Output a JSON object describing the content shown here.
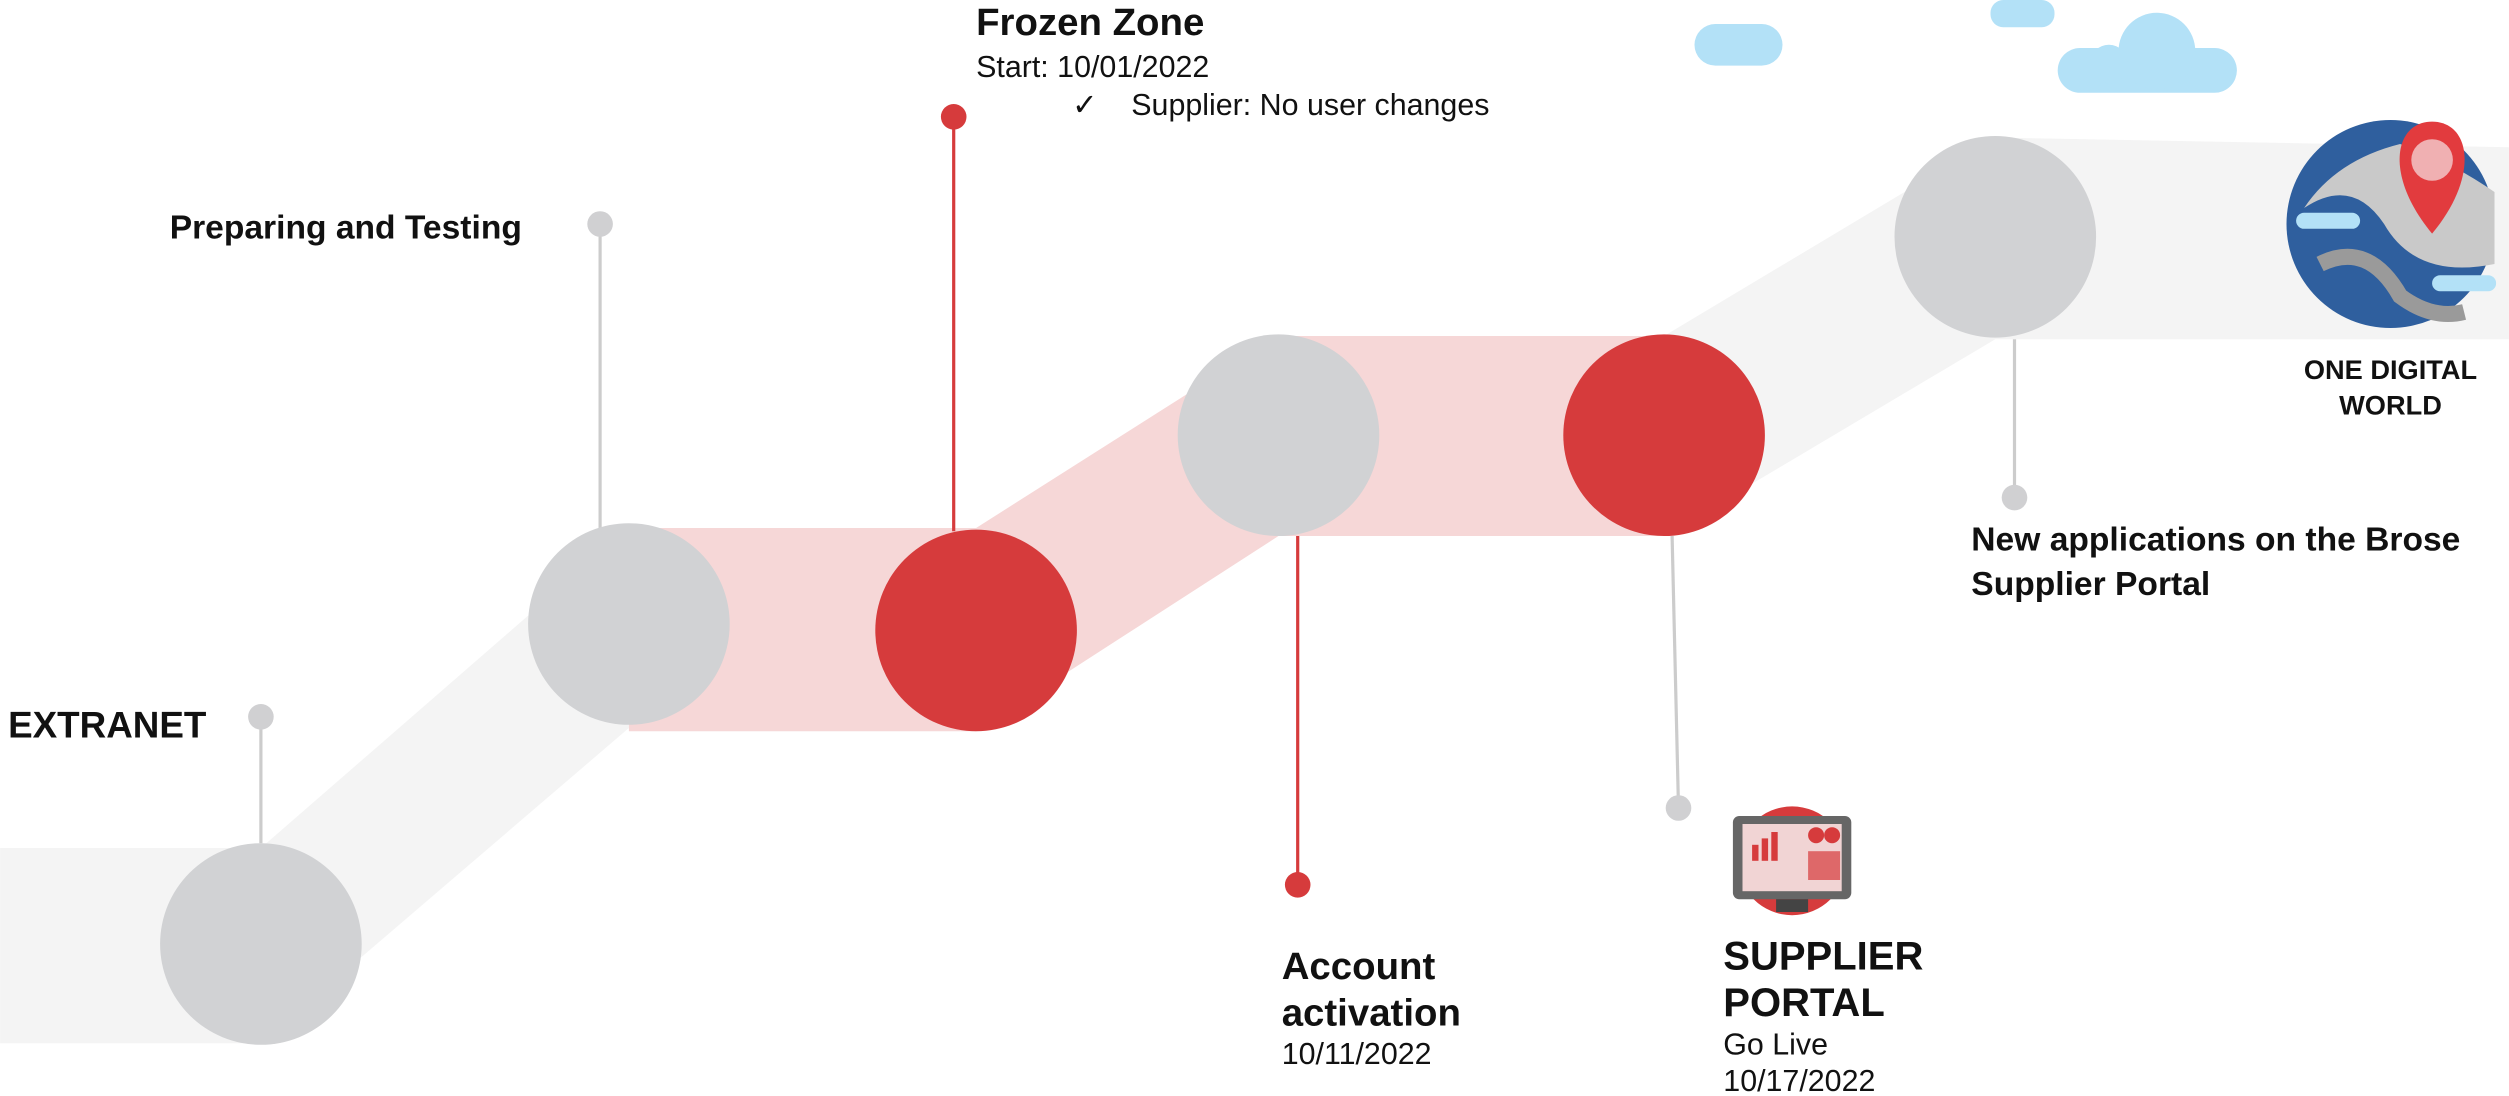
{
  "milestones": [
    {
      "title": "EXTRANET"
    },
    {
      "title": "Preparing and Testing"
    },
    {
      "title": "Frozen Zone",
      "detail": "Start: 10/01/2022",
      "check": "✓",
      "note": "Supplier: No user changes"
    },
    {
      "title_lines": [
        "Account",
        "activation"
      ],
      "date": "10/11/2022"
    },
    {
      "title_lines": [
        "SUPPLIER",
        "PORTAL"
      ],
      "detail": "Go Live",
      "date": "10/17/2022"
    },
    {
      "title_lines": [
        "New applications on the Brose",
        "Supplier Portal"
      ]
    }
  ],
  "goal": {
    "lines": [
      "ONE DIGITAL",
      "WORLD"
    ]
  }
}
